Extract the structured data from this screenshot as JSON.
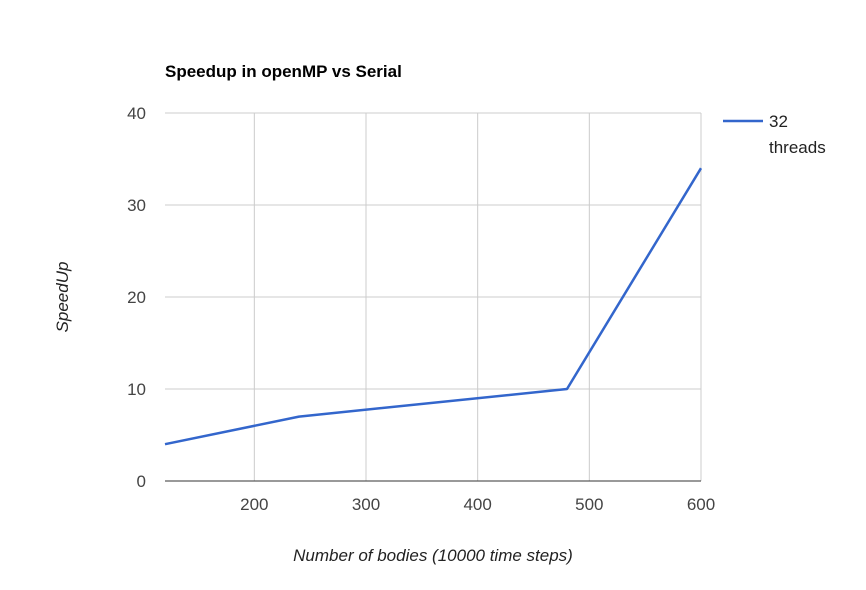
{
  "chart_data": {
    "type": "line",
    "title": "Speedup in openMP vs Serial",
    "xlabel": "Number of bodies (10000 time steps)",
    "ylabel": "SpeedUp",
    "xlim": [
      120,
      600
    ],
    "ylim": [
      0,
      40
    ],
    "x_ticks": [
      200,
      300,
      400,
      500,
      600
    ],
    "y_ticks": [
      0,
      10,
      20,
      30,
      40
    ],
    "grid": true,
    "legend_position": "right",
    "series": [
      {
        "name": "32 threads",
        "name_lines": [
          "32",
          "threads"
        ],
        "color": "#3366cc",
        "points": [
          {
            "x": 120,
            "y": 4
          },
          {
            "x": 240,
            "y": 7
          },
          {
            "x": 480,
            "y": 10
          },
          {
            "x": 600,
            "y": 34
          }
        ]
      }
    ]
  }
}
